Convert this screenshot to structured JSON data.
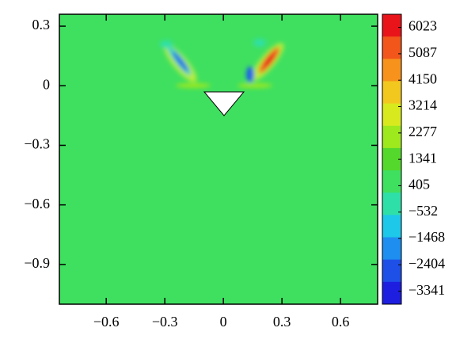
{
  "chart_data": {
    "type": "contour",
    "xlim": [
      -0.84,
      0.79
    ],
    "ylim": [
      -1.1,
      0.36
    ],
    "xticks": [
      {
        "value": -0.6,
        "label": "−0.6"
      },
      {
        "value": -0.3,
        "label": "−0.3"
      },
      0,
      0.3,
      0.6
    ],
    "yticks": [
      0.3,
      0,
      {
        "value": -0.3,
        "label": "−0.3"
      },
      {
        "value": -0.6,
        "label": "−0.6"
      },
      {
        "value": -0.9,
        "label": "−0.9"
      }
    ],
    "background_color": "#3fe060",
    "colorbar": {
      "lim": [
        -3800,
        6490
      ],
      "ticks": [
        6023,
        5087,
        4150,
        3214,
        2277,
        1341,
        405,
        {
          "value": -532,
          "label": "−532"
        },
        {
          "value": -1468,
          "label": "−1468"
        },
        {
          "value": -2404,
          "label": "−2404"
        },
        {
          "value": -3341,
          "label": "−3341"
        }
      ],
      "colors": [
        "#e8141a",
        "#f2561a",
        "#f7921c",
        "#f2c81e",
        "#d8ea1e",
        "#9ee81e",
        "#55d82c",
        "#3fe060",
        "#2ee0a8",
        "#1ec8e8",
        "#1e8ef0",
        "#1e50e8",
        "#1e1ee0"
      ]
    }
  }
}
